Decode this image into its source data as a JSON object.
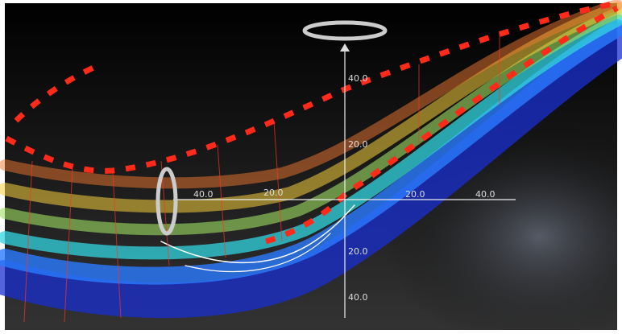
{
  "axes": {
    "x_labels": [
      "40.0",
      "20.0",
      "20.0",
      "40.0"
    ],
    "y_labels": [
      "40.0",
      "20.0",
      "20.0",
      "40.0"
    ]
  }
}
